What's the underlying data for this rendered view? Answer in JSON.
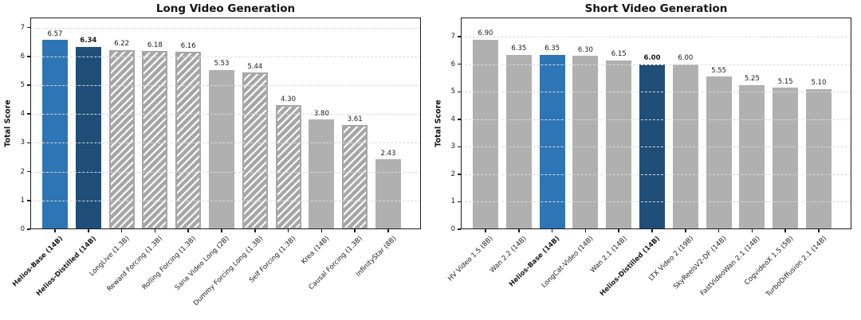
{
  "figure_title": "",
  "colors": {
    "helios_base_blue": "#2e75b5",
    "helios_distilled_navy": "#1f4e79",
    "baseline_gray": "#b0b0b0",
    "hatch_gray": "#a6a6a6",
    "hatch_stripe": "#ffffff",
    "grid": "#d9d9d9",
    "spine": "#1c1c1c"
  },
  "chart_data": [
    {
      "type": "bar",
      "title": "Long Video Generation",
      "xlabel": "",
      "ylabel": "Total Score",
      "ylim": [
        0,
        7.35
      ],
      "yticks": [
        0,
        1,
        2,
        3,
        4,
        5,
        6,
        7
      ],
      "grid": "horizontal, dashed, drawn above bars",
      "legend": "none",
      "categories": [
        "Helios-Base (14B)",
        "Helios-Distilled (14B)",
        "LongLive (1.3B)",
        "Reward Forcing (1.3B)",
        "Rolling Forcing (1.3B)",
        "Sana Video Long (2B)",
        "Dummy Forcing Long (1.3B)",
        "Self Forcing (1.3B)",
        "Krea (14B)",
        "Causal Forcing (1.3B)",
        "InfinityStar (8B)"
      ],
      "values": [
        6.57,
        6.34,
        6.22,
        6.18,
        6.16,
        5.53,
        5.44,
        4.3,
        3.8,
        3.61,
        2.43
      ],
      "value_labels": [
        "6.57",
        "6.34",
        "6.22",
        "6.18",
        "6.16",
        "5.53",
        "5.44",
        "4.30",
        "3.80",
        "3.61",
        "2.43"
      ],
      "bar_styles": [
        "blue",
        "navy",
        "hatched",
        "hatched",
        "hatched",
        "gray",
        "hatched",
        "hatched",
        "gray",
        "hatched",
        "gray"
      ],
      "bold_category_indices": [
        0,
        1
      ],
      "bold_value_label_indices": [
        1
      ]
    },
    {
      "type": "bar",
      "title": "Short Video Generation",
      "xlabel": "",
      "ylabel": "Total Score",
      "ylim": [
        0,
        7.7
      ],
      "yticks": [
        0,
        1,
        2,
        3,
        4,
        5,
        6,
        7
      ],
      "grid": "horizontal, dashed, drawn above bars",
      "legend": "none",
      "categories": [
        "HV Video 1.5 (8B)",
        "Wan 2.2 (14B)",
        "Helios-Base (14B)",
        "LongCat-Video (14B)",
        "Wan 2.1 (14B)",
        "Helios-Distilled (14B)",
        "LTX Video 2 (19B)",
        "SkyReelsV2-DF (14B)",
        "FastVideoWan 2.1 (14B)",
        "CogvideoX 1.5 (5B)",
        "TurboDiffusion 2.1 (14B)"
      ],
      "values": [
        6.9,
        6.35,
        6.35,
        6.3,
        6.15,
        6.0,
        6.0,
        5.55,
        5.25,
        5.15,
        5.1
      ],
      "value_labels": [
        "6.90",
        "6.35",
        "6.35",
        "6.30",
        "6.15",
        "6.00",
        "6.00",
        "5.55",
        "5.25",
        "5.15",
        "5.10"
      ],
      "bar_styles": [
        "gray",
        "gray",
        "blue",
        "gray",
        "gray",
        "navy",
        "gray",
        "gray",
        "gray",
        "gray",
        "gray"
      ],
      "bold_category_indices": [
        2,
        5
      ],
      "bold_value_label_indices": [
        5
      ]
    }
  ]
}
